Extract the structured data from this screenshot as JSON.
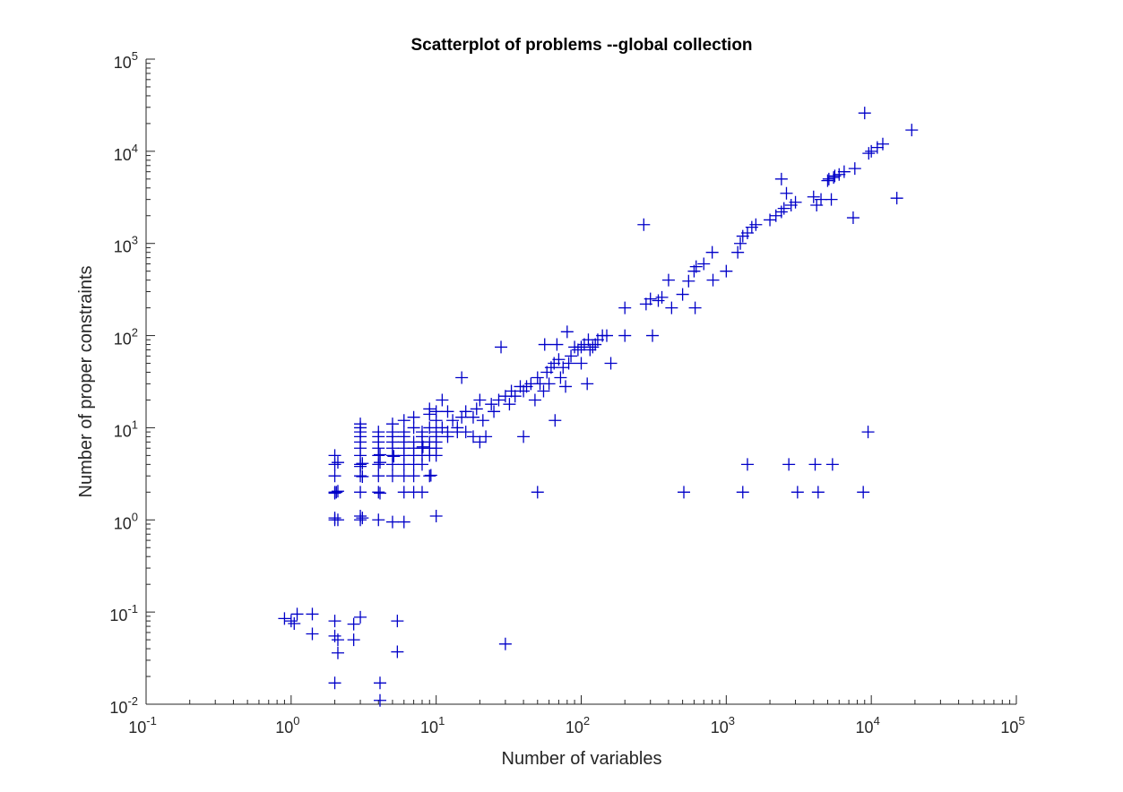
{
  "chart_data": {
    "type": "scatter",
    "title": "Scatterplot of problems --global collection",
    "xlabel": "Number of variables",
    "ylabel": "Number of proper constraints",
    "xscale": "log",
    "yscale": "log",
    "xlim": [
      0.1,
      100000
    ],
    "ylim": [
      0.01,
      100000
    ],
    "x_ticks": [
      {
        "base": "10",
        "exp": "-1"
      },
      {
        "base": "10",
        "exp": "0"
      },
      {
        "base": "10",
        "exp": "1"
      },
      {
        "base": "10",
        "exp": "2"
      },
      {
        "base": "10",
        "exp": "3"
      },
      {
        "base": "10",
        "exp": "4"
      },
      {
        "base": "10",
        "exp": "5"
      }
    ],
    "y_ticks": [
      {
        "base": "10",
        "exp": "-2"
      },
      {
        "base": "10",
        "exp": "-1"
      },
      {
        "base": "10",
        "exp": "0"
      },
      {
        "base": "10",
        "exp": "1"
      },
      {
        "base": "10",
        "exp": "2"
      },
      {
        "base": "10",
        "exp": "3"
      },
      {
        "base": "10",
        "exp": "4"
      },
      {
        "base": "10",
        "exp": "5"
      }
    ],
    "marker": "+",
    "marker_color": "#0000c8",
    "grid": false,
    "box": false,
    "points": [
      [
        0.9,
        0.085
      ],
      [
        1.0,
        0.08
      ],
      [
        1.05,
        0.075
      ],
      [
        1.1,
        0.095
      ],
      [
        2,
        0.08
      ],
      [
        2,
        0.055
      ],
      [
        2.1,
        0.05
      ],
      [
        2.1,
        0.036
      ],
      [
        2,
        0.017
      ],
      [
        3,
        0.088
      ],
      [
        30,
        0.045
      ],
      [
        1.4,
        0.095
      ],
      [
        1.4,
        0.058
      ],
      [
        2.7,
        0.074
      ],
      [
        2.7,
        0.05
      ],
      [
        5.4,
        0.08
      ],
      [
        5.4,
        0.037
      ],
      [
        4.1,
        0.017
      ],
      [
        4.1,
        0.011
      ],
      [
        2,
        1.0
      ],
      [
        2,
        1.05
      ],
      [
        2.1,
        1.0
      ],
      [
        3,
        1.0
      ],
      [
        3,
        1.1
      ],
      [
        3.1,
        1.05
      ],
      [
        4,
        1.0
      ],
      [
        5,
        0.95
      ],
      [
        6,
        0.95
      ],
      [
        10,
        1.1
      ],
      [
        2,
        2.0
      ],
      [
        2,
        1.95
      ],
      [
        2.1,
        2.05
      ],
      [
        2.05,
        2.0
      ],
      [
        3,
        2.0
      ],
      [
        4,
        2.0
      ],
      [
        4.1,
        1.95
      ],
      [
        6,
        2.0
      ],
      [
        7,
        2.0
      ],
      [
        8,
        2.0
      ],
      [
        50,
        2.0
      ],
      [
        2,
        3.0
      ],
      [
        3,
        3.0
      ],
      [
        3.1,
        2.95
      ],
      [
        4,
        3.0
      ],
      [
        5,
        3.0
      ],
      [
        6,
        3.0
      ],
      [
        7,
        3.0
      ],
      [
        9,
        3.0
      ],
      [
        9.2,
        3.05
      ],
      [
        2,
        4.0
      ],
      [
        2.1,
        4.2
      ],
      [
        3,
        3.8
      ],
      [
        3,
        4.0
      ],
      [
        3.1,
        4.1
      ],
      [
        4,
        4.0
      ],
      [
        4.1,
        4.2
      ],
      [
        5,
        4.0
      ],
      [
        6,
        4.0
      ],
      [
        7,
        4.0
      ],
      [
        8,
        4.0
      ],
      [
        2,
        5.0
      ],
      [
        3,
        5.0
      ],
      [
        4,
        5.0
      ],
      [
        4.1,
        5.1
      ],
      [
        5,
        5.0
      ],
      [
        5.1,
        4.9
      ],
      [
        6,
        5.0
      ],
      [
        7,
        5.0
      ],
      [
        8,
        5.0
      ],
      [
        9,
        5.0
      ],
      [
        10,
        5.0
      ],
      [
        3,
        6.0
      ],
      [
        4,
        6.0
      ],
      [
        5,
        6.0
      ],
      [
        6,
        6.0
      ],
      [
        7,
        6.0
      ],
      [
        8,
        6.0
      ],
      [
        8.1,
        6.2
      ],
      [
        9,
        6.0
      ],
      [
        10,
        6.0
      ],
      [
        3,
        7.0
      ],
      [
        4,
        7.0
      ],
      [
        5,
        7.0
      ],
      [
        6,
        7.0
      ],
      [
        7,
        7.0
      ],
      [
        8,
        7.0
      ],
      [
        9,
        7.0
      ],
      [
        10,
        7.0
      ],
      [
        3,
        8.0
      ],
      [
        4,
        8.0
      ],
      [
        5,
        8.0
      ],
      [
        6,
        8.0
      ],
      [
        8,
        8.0
      ],
      [
        10,
        8.0
      ],
      [
        12,
        8.0
      ],
      [
        40,
        8.0
      ],
      [
        3,
        9.0
      ],
      [
        3,
        10.0
      ],
      [
        3,
        11.0
      ],
      [
        4,
        9.0
      ],
      [
        5,
        9.0
      ],
      [
        6,
        9.0
      ],
      [
        7,
        10.0
      ],
      [
        8,
        9.0
      ],
      [
        9,
        10.0
      ],
      [
        10,
        9.0
      ],
      [
        11,
        10.0
      ],
      [
        12,
        9.0
      ],
      [
        14,
        9.0
      ],
      [
        16,
        9.0
      ],
      [
        18,
        8.0
      ],
      [
        20,
        7.0
      ],
      [
        5,
        11.0
      ],
      [
        6,
        12.0
      ],
      [
        7,
        13.0
      ],
      [
        9,
        14.0
      ],
      [
        9,
        16.0
      ],
      [
        10,
        15.0
      ],
      [
        10,
        12.0
      ],
      [
        11,
        20.0
      ],
      [
        12,
        15.0
      ],
      [
        13,
        12.0
      ],
      [
        14,
        10.0
      ],
      [
        15,
        13.0
      ],
      [
        15,
        35.0
      ],
      [
        16,
        15.0
      ],
      [
        18,
        13.0
      ],
      [
        19,
        16.0
      ],
      [
        20,
        20.0
      ],
      [
        21,
        12.0
      ],
      [
        22,
        8.0
      ],
      [
        24,
        18.0
      ],
      [
        25,
        15.0
      ],
      [
        27,
        20.0
      ],
      [
        28,
        75.0
      ],
      [
        30,
        22.0
      ],
      [
        32,
        18.0
      ],
      [
        33,
        25.0
      ],
      [
        35,
        22.0
      ],
      [
        38,
        28.0
      ],
      [
        40,
        25.0
      ],
      [
        42,
        28.0
      ],
      [
        45,
        30.0
      ],
      [
        48,
        20.0
      ],
      [
        50,
        35.0
      ],
      [
        52,
        30.0
      ],
      [
        55,
        25.0
      ],
      [
        56,
        80.0
      ],
      [
        58,
        40.0
      ],
      [
        60,
        30.0
      ],
      [
        62,
        45.0
      ],
      [
        65,
        50.0
      ],
      [
        66,
        12.0
      ],
      [
        68,
        80.0
      ],
      [
        70,
        55.0
      ],
      [
        72,
        35.0
      ],
      [
        75,
        45.0
      ],
      [
        78,
        28.0
      ],
      [
        80,
        110.0
      ],
      [
        82,
        50.0
      ],
      [
        85,
        60.0
      ],
      [
        90,
        75.0
      ],
      [
        95,
        70.0
      ],
      [
        100,
        50.0
      ],
      [
        100,
        75.0
      ],
      [
        105,
        80.0
      ],
      [
        110,
        30.0
      ],
      [
        112,
        90.0
      ],
      [
        115,
        70.0
      ],
      [
        120,
        75.0
      ],
      [
        125,
        80.0
      ],
      [
        130,
        90.0
      ],
      [
        140,
        100.0
      ],
      [
        150,
        100.0
      ],
      [
        160,
        50.0
      ],
      [
        200,
        200.0
      ],
      [
        200,
        100.0
      ],
      [
        270,
        1600.0
      ],
      [
        280,
        220.0
      ],
      [
        300,
        250.0
      ],
      [
        310,
        100.0
      ],
      [
        340,
        240.0
      ],
      [
        360,
        260.0
      ],
      [
        400,
        400.0
      ],
      [
        420,
        200.0
      ],
      [
        500,
        280.0
      ],
      [
        510,
        2.0
      ],
      [
        550,
        390.0
      ],
      [
        600,
        500.0
      ],
      [
        610,
        200.0
      ],
      [
        620,
        560.0
      ],
      [
        700,
        600.0
      ],
      [
        800,
        800.0
      ],
      [
        810,
        400.0
      ],
      [
        1000,
        500.0
      ],
      [
        1200,
        800.0
      ],
      [
        1250,
        1000.0
      ],
      [
        1300,
        1200.0
      ],
      [
        1300,
        2.0
      ],
      [
        1400,
        1300.0
      ],
      [
        1400,
        4.0
      ],
      [
        1500,
        1500.0
      ],
      [
        1600,
        1600.0
      ],
      [
        2000,
        1800.0
      ],
      [
        2200,
        2000.0
      ],
      [
        2400,
        5000.0
      ],
      [
        2400,
        2200.0
      ],
      [
        2500,
        2400.0
      ],
      [
        2600,
        3500.0
      ],
      [
        2700,
        4.0
      ],
      [
        2800,
        2600.0
      ],
      [
        3000,
        2800.0
      ],
      [
        3100,
        2.0
      ],
      [
        4000,
        3200.0
      ],
      [
        4100,
        4.0
      ],
      [
        4200,
        2600.0
      ],
      [
        4300,
        2.0
      ],
      [
        4500,
        3000.0
      ],
      [
        5000,
        4800.0
      ],
      [
        5100,
        5000.0
      ],
      [
        5300,
        3000.0
      ],
      [
        5400,
        4.0
      ],
      [
        5500,
        5200.0
      ],
      [
        5600,
        5400.0
      ],
      [
        6000,
        5600.0
      ],
      [
        6500,
        6000.0
      ],
      [
        7500,
        1900.0
      ],
      [
        7700,
        6500.0
      ],
      [
        8800,
        2.0
      ],
      [
        9000,
        26000.0
      ],
      [
        9500,
        9.0
      ],
      [
        9600,
        9500.0
      ],
      [
        10000,
        10000.0
      ],
      [
        11000,
        11000.0
      ],
      [
        12000,
        12000.0
      ],
      [
        15000,
        3100.0
      ],
      [
        19000,
        17000.0
      ]
    ]
  }
}
